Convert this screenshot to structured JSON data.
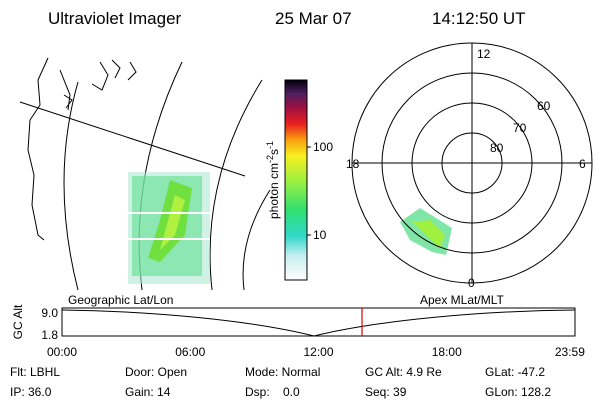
{
  "header": {
    "title": "Ultraviolet Imager",
    "date": "25 Mar 07",
    "time": "14:12:50 UT"
  },
  "colorbar": {
    "label": [
      "photon cm",
      "-2",
      "s",
      "-1"
    ],
    "ticks": [
      "100",
      "10"
    ]
  },
  "geographic_panel": {
    "caption": "Geographic Lat/Lon"
  },
  "polar_panel": {
    "caption": "Apex MLat/MLT",
    "mlt_labels": [
      "12",
      "18",
      "6",
      "0"
    ],
    "lat_labels": [
      "60",
      "70",
      "80"
    ]
  },
  "altitude_plot": {
    "ylabel": "GC Alt",
    "yticks": [
      "9.0",
      "1.8"
    ],
    "xticks": [
      "00:00",
      "06:00",
      "12:00",
      "18:00",
      "23:59"
    ]
  },
  "status": {
    "rows": [
      [
        "Flt: LBHL",
        "Door: Open",
        "Mode: Normal",
        "GC Alt: 4.9 Re",
        "GLat: -47.2"
      ],
      [
        "IP: 36.0",
        "Gain: 14",
        "Dsp:    0.0",
        "Seq: 39",
        "GLon: 128.2"
      ]
    ]
  }
}
